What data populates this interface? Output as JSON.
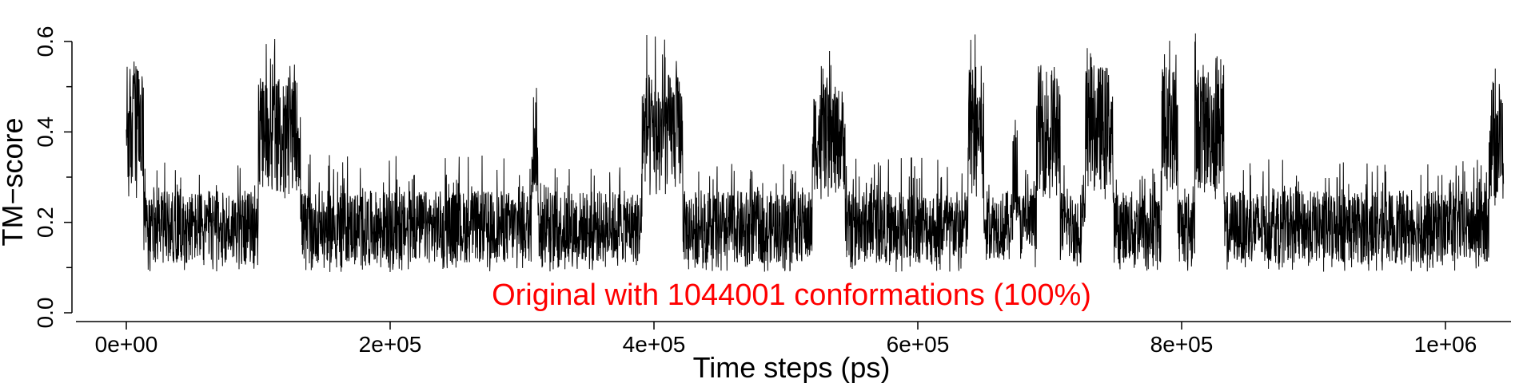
{
  "chart_data": {
    "type": "line",
    "title": "",
    "xlabel": "Time steps (ps)",
    "ylabel": "TM−score",
    "xlim": [
      0,
      1050000
    ],
    "ylim": [
      0.0,
      0.62
    ],
    "xticks": [
      {
        "value": 0,
        "label": "0e+00"
      },
      {
        "value": 200000,
        "label": "2e+05"
      },
      {
        "value": 400000,
        "label": "4e+05"
      },
      {
        "value": 600000,
        "label": "6e+05"
      },
      {
        "value": 800000,
        "label": "8e+05"
      },
      {
        "value": 1000000,
        "label": "1e+06"
      }
    ],
    "yticks": [
      {
        "value": 0.0,
        "label": "0.0"
      },
      {
        "value": 0.2,
        "label": "0.2"
      },
      {
        "value": 0.4,
        "label": "0.4"
      },
      {
        "value": 0.6,
        "label": "0.6"
      }
    ],
    "annotation": {
      "text": "Original with 1044001 conformations (100%)",
      "color": "#ff0000"
    },
    "line_color": "#000000",
    "grid": false,
    "n_points_total": 1044001,
    "series": [
      {
        "segments": [
          {
            "x_start": 0,
            "x_end": 13000,
            "y_low": 0.26,
            "y_high": 0.55,
            "y_max": 0.62
          },
          {
            "x_start": 13000,
            "x_end": 100000,
            "y_low": 0.11,
            "y_high": 0.27,
            "y_max": 0.34
          },
          {
            "x_start": 100000,
            "x_end": 132000,
            "y_low": 0.27,
            "y_high": 0.52,
            "y_max": 0.62
          },
          {
            "x_start": 132000,
            "x_end": 307000,
            "y_low": 0.11,
            "y_high": 0.27,
            "y_max": 0.35
          },
          {
            "x_start": 307000,
            "x_end": 312000,
            "y_low": 0.26,
            "y_high": 0.5,
            "y_max": 0.53
          },
          {
            "x_start": 312000,
            "x_end": 391000,
            "y_low": 0.11,
            "y_high": 0.27,
            "y_max": 0.33
          },
          {
            "x_start": 391000,
            "x_end": 422000,
            "y_low": 0.28,
            "y_high": 0.53,
            "y_max": 0.62
          },
          {
            "x_start": 422000,
            "x_end": 520000,
            "y_low": 0.11,
            "y_high": 0.27,
            "y_max": 0.33
          },
          {
            "x_start": 520000,
            "x_end": 545000,
            "y_low": 0.27,
            "y_high": 0.5,
            "y_max": 0.58
          },
          {
            "x_start": 545000,
            "x_end": 638000,
            "y_low": 0.11,
            "y_high": 0.27,
            "y_max": 0.35
          },
          {
            "x_start": 638000,
            "x_end": 650000,
            "y_low": 0.27,
            "y_high": 0.55,
            "y_max": 0.62
          },
          {
            "x_start": 650000,
            "x_end": 672000,
            "y_low": 0.12,
            "y_high": 0.27,
            "y_max": 0.33
          },
          {
            "x_start": 672000,
            "x_end": 676000,
            "y_low": 0.22,
            "y_high": 0.4,
            "y_max": 0.45
          },
          {
            "x_start": 676000,
            "x_end": 690000,
            "y_low": 0.12,
            "y_high": 0.27,
            "y_max": 0.33
          },
          {
            "x_start": 690000,
            "x_end": 708000,
            "y_low": 0.27,
            "y_high": 0.55,
            "y_max": 0.62
          },
          {
            "x_start": 708000,
            "x_end": 727000,
            "y_low": 0.11,
            "y_high": 0.27,
            "y_max": 0.33
          },
          {
            "x_start": 727000,
            "x_end": 748000,
            "y_low": 0.27,
            "y_high": 0.55,
            "y_max": 0.62
          },
          {
            "x_start": 748000,
            "x_end": 785000,
            "y_low": 0.11,
            "y_high": 0.27,
            "y_max": 0.33
          },
          {
            "x_start": 785000,
            "x_end": 797000,
            "y_low": 0.27,
            "y_high": 0.55,
            "y_max": 0.62
          },
          {
            "x_start": 797000,
            "x_end": 810000,
            "y_low": 0.11,
            "y_high": 0.27,
            "y_max": 0.33
          },
          {
            "x_start": 810000,
            "x_end": 832000,
            "y_low": 0.27,
            "y_high": 0.55,
            "y_max": 0.62
          },
          {
            "x_start": 832000,
            "x_end": 1033000,
            "y_low": 0.11,
            "y_high": 0.27,
            "y_max": 0.34
          },
          {
            "x_start": 1033000,
            "x_end": 1044001,
            "y_low": 0.24,
            "y_high": 0.52,
            "y_max": 0.57
          }
        ]
      }
    ]
  }
}
